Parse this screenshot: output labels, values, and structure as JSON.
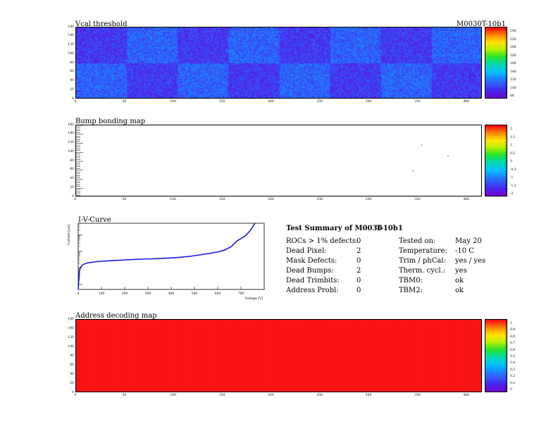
{
  "header": {
    "module_id": "M0030T-10b1"
  },
  "panels": {
    "vcal": {
      "title": "Vcal threshold",
      "y_ticks": [
        "0",
        "20",
        "40",
        "60",
        "80",
        "100",
        "120",
        "140",
        "160"
      ],
      "x_ticks": [
        "0",
        "50",
        "100",
        "150",
        "200",
        "250",
        "300",
        "350",
        "400"
      ],
      "colorbar_ticks": [
        "80",
        "100",
        "120",
        "140",
        "160",
        "180",
        "200",
        "220",
        "240"
      ]
    },
    "bump": {
      "title": "Bump bonding map",
      "y_ticks": [
        "0",
        "20",
        "40",
        "60",
        "80",
        "100",
        "120",
        "140",
        "160"
      ],
      "x_ticks": [
        "0",
        "50",
        "100",
        "150",
        "200",
        "250",
        "300",
        "350",
        "400"
      ],
      "colorbar_ticks": [
        "-2",
        "-1.5",
        "-1",
        "-0.5",
        "0",
        "0.5",
        "1",
        "1.5",
        "2"
      ]
    },
    "iv": {
      "title": "I-V-Curve",
      "ylabel": "Current [μA]",
      "xlabel": "Voltage [V]",
      "x_ticks": [
        "0",
        "100",
        "200",
        "300",
        "400",
        "500",
        "600",
        "700"
      ]
    },
    "addr": {
      "title": "Address decoding map",
      "y_ticks": [
        "0",
        "20",
        "40",
        "60",
        "80",
        "100",
        "120",
        "140",
        "160"
      ],
      "x_ticks": [
        "0",
        "50",
        "100",
        "150",
        "200",
        "250",
        "300",
        "350",
        "400"
      ],
      "colorbar_ticks": [
        "0",
        "0.1",
        "0.2",
        "0.3",
        "0.4",
        "0.5",
        "0.6",
        "0.7",
        "0.8",
        "0.9",
        "1"
      ]
    }
  },
  "summary": {
    "heading_left": "Test Summary of M0030",
    "heading_right": "T-10b1",
    "left": [
      {
        "label": "ROCs > 1% defects:",
        "value": "0"
      },
      {
        "label": "Dead Pixel:",
        "value": "2"
      },
      {
        "label": "Mask Defects:",
        "value": "0"
      },
      {
        "label": "Dead Bumps:",
        "value": "2"
      },
      {
        "label": "Dead Trimbits:",
        "value": "0"
      },
      {
        "label": "Address Probl:",
        "value": "0"
      }
    ],
    "right": [
      {
        "label": "Tested on:",
        "value": "May 20"
      },
      {
        "label": "Temperature:",
        "value": "-10 C"
      },
      {
        "label": "Trim / phCal:",
        "value": "yes / yes"
      },
      {
        "label": "Therm. cycl.:",
        "value": "yes"
      },
      {
        "label": "TBM0:",
        "value": "ok"
      },
      {
        "label": "TBM2:",
        "value": "ok"
      }
    ]
  },
  "chart_data": [
    {
      "type": "heatmap",
      "title": "Vcal threshold",
      "xlim": [
        0,
        416
      ],
      "ylim": [
        0,
        160
      ],
      "zlim": [
        80,
        240
      ],
      "roc_blocks": {
        "rows": 2,
        "cols": 8
      },
      "typical_value": 110
    },
    {
      "type": "heatmap",
      "title": "Bump bonding map",
      "xlim": [
        0,
        416
      ],
      "ylim": [
        0,
        160
      ],
      "zlim": [
        -2,
        2
      ],
      "points": [
        [
          344,
          60
        ],
        [
          353,
          117
        ],
        [
          380,
          94
        ]
      ]
    },
    {
      "type": "line",
      "title": "I-V-Curve",
      "xlim": [
        0,
        800
      ],
      "yscale": "log",
      "color": "#1a1ae6",
      "x": [
        0,
        5,
        10,
        20,
        40,
        80,
        150,
        250,
        350,
        420,
        480,
        520,
        560,
        600,
        630,
        660,
        680,
        700,
        720,
        740,
        760
      ],
      "y": [
        0.05,
        0.6,
        1.1,
        1.6,
        2.0,
        2.4,
        2.8,
        3.3,
        3.7,
        4.2,
        5.0,
        6.0,
        7.4,
        9.2,
        12.0,
        20.0,
        40.0,
        60.0,
        90.0,
        180.0,
        500.0
      ]
    },
    {
      "type": "heatmap",
      "title": "Address decoding map",
      "xlim": [
        0,
        416
      ],
      "ylim": [
        0,
        160
      ],
      "zlim": [
        0,
        1
      ],
      "uniform_value": 1
    }
  ]
}
